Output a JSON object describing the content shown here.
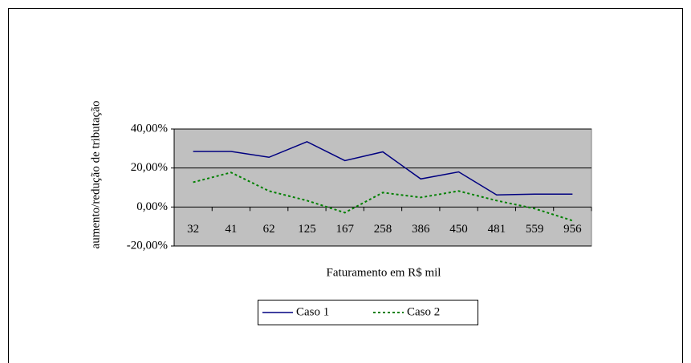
{
  "chart_data": {
    "type": "line",
    "y_label": "aumento/redução de tributação",
    "x_label": "Faturamento em R$ mil",
    "categories": [
      32,
      41,
      62,
      125,
      167,
      258,
      386,
      450,
      481,
      559,
      956
    ],
    "series": [
      {
        "name": "Caso 1",
        "color": "#000080",
        "dash": "solid",
        "values": [
          28.5,
          28.5,
          25.5,
          33.5,
          23.8,
          28.3,
          14.4,
          18,
          6.2,
          6.6,
          6.6
        ]
      },
      {
        "name": "Caso 2",
        "color": "#008000",
        "dash": "dotted",
        "values": [
          12.7,
          17.7,
          8.2,
          3.3,
          -2.9,
          7.4,
          4.9,
          8.2,
          3.3,
          -0.8,
          -7
        ]
      }
    ],
    "ylim": [
      -20,
      40
    ],
    "yticks": [
      {
        "value": -20,
        "label": "-20,00%"
      },
      {
        "value": 0,
        "label": "0,00%"
      },
      {
        "value": 20,
        "label": "20,00%"
      },
      {
        "value": 40,
        "label": "40,00%"
      }
    ],
    "grid": true,
    "legend": "bottom"
  }
}
